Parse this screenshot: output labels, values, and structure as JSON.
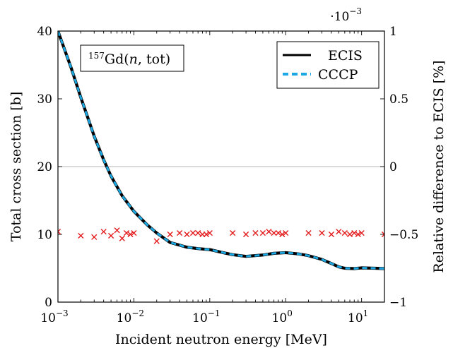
{
  "chart_data": {
    "type": "line",
    "xscale": "log",
    "xlim": [
      0.001,
      20
    ],
    "xlabel": "Incident neutron energy [MeV]",
    "x_tick_labels": [
      {
        "base": "10",
        "exp": "−3",
        "value": 0.001
      },
      {
        "base": "10",
        "exp": "−2",
        "value": 0.01
      },
      {
        "base": "10",
        "exp": "−1",
        "value": 0.1
      },
      {
        "base": "10",
        "exp": "0",
        "value": 1
      },
      {
        "base": "10",
        "exp": "1",
        "value": 10
      }
    ],
    "ylabel_left": "Total cross section [b]",
    "ylim_left": [
      0,
      40
    ],
    "y_ticks_left": [
      0,
      10,
      20,
      30,
      40
    ],
    "y_tick_labels_left": [
      "0",
      "10",
      "20",
      "30",
      "40"
    ],
    "ylabel_right": "Relative difference to ECIS [%]",
    "ylim_right": [
      -1,
      1
    ],
    "y_ticks_right": [
      -1,
      -0.5,
      0,
      0.5,
      1
    ],
    "y_tick_labels_right": [
      "−1",
      "−0.5",
      "0",
      "0.5",
      "1"
    ],
    "right_scale_factor": {
      "prefix": "·10",
      "exp": "−3"
    },
    "annotation": {
      "sup": "157",
      "main": "Gd(",
      "italic": "n",
      "rest": ", tot)"
    },
    "grid": "horizontal line at right-axis 0",
    "legend": {
      "position": "top-right",
      "entries": [
        {
          "label": "ECIS",
          "color": "#000000",
          "style": "solid"
        },
        {
          "label": "CCCP",
          "color": "#1ca8e3",
          "style": "dashed"
        }
      ]
    },
    "series": [
      {
        "name": "ECIS",
        "axis": "left",
        "color": "#000000",
        "x": [
          0.001,
          0.0015,
          0.002,
          0.003,
          0.004,
          0.005,
          0.007,
          0.01,
          0.015,
          0.02,
          0.03,
          0.05,
          0.07,
          0.1,
          0.15,
          0.2,
          0.3,
          0.5,
          0.7,
          1,
          1.5,
          2,
          3,
          4,
          5,
          6,
          8,
          10,
          15,
          20
        ],
        "values": [
          40,
          34.5,
          30.2,
          24.5,
          21.0,
          18.6,
          15.7,
          13.4,
          11.4,
          10.2,
          8.8,
          8.1,
          7.9,
          7.75,
          7.3,
          7.0,
          6.75,
          6.95,
          7.2,
          7.3,
          7.1,
          6.85,
          6.3,
          5.7,
          5.2,
          5.0,
          4.95,
          5.05,
          5.0,
          4.95
        ]
      },
      {
        "name": "CCCP",
        "axis": "left",
        "color": "#1ca8e3",
        "x": [
          0.001,
          0.0015,
          0.002,
          0.003,
          0.004,
          0.005,
          0.007,
          0.01,
          0.015,
          0.02,
          0.03,
          0.05,
          0.07,
          0.1,
          0.15,
          0.2,
          0.3,
          0.5,
          0.7,
          1,
          1.5,
          2,
          3,
          4,
          5,
          6,
          8,
          10,
          15,
          20
        ],
        "values": [
          40,
          34.5,
          30.2,
          24.5,
          21.0,
          18.6,
          15.7,
          13.4,
          11.4,
          10.2,
          8.8,
          8.1,
          7.9,
          7.75,
          7.3,
          7.0,
          6.75,
          6.95,
          7.2,
          7.3,
          7.1,
          6.85,
          6.3,
          5.7,
          5.2,
          5.0,
          4.95,
          5.05,
          5.0,
          4.95
        ]
      },
      {
        "name": "relative-difference",
        "axis": "right",
        "marker": "x",
        "color": "#e41a1c",
        "x": [
          0.001,
          0.002,
          0.003,
          0.004,
          0.005,
          0.006,
          0.007,
          0.008,
          0.009,
          0.01,
          0.02,
          0.03,
          0.04,
          0.05,
          0.06,
          0.07,
          0.08,
          0.09,
          0.1,
          0.2,
          0.3,
          0.4,
          0.5,
          0.6,
          0.7,
          0.8,
          0.9,
          1,
          2,
          3,
          4,
          5,
          6,
          7,
          8,
          9,
          10,
          20
        ],
        "values": [
          -0.48,
          -0.51,
          -0.52,
          -0.48,
          -0.51,
          -0.47,
          -0.53,
          -0.49,
          -0.5,
          -0.49,
          -0.55,
          -0.5,
          -0.49,
          -0.5,
          -0.49,
          -0.49,
          -0.5,
          -0.5,
          -0.49,
          -0.49,
          -0.5,
          -0.49,
          -0.49,
          -0.48,
          -0.49,
          -0.49,
          -0.5,
          -0.49,
          -0.49,
          -0.49,
          -0.5,
          -0.48,
          -0.49,
          -0.5,
          -0.49,
          -0.5,
          -0.49,
          -0.5
        ]
      }
    ]
  }
}
